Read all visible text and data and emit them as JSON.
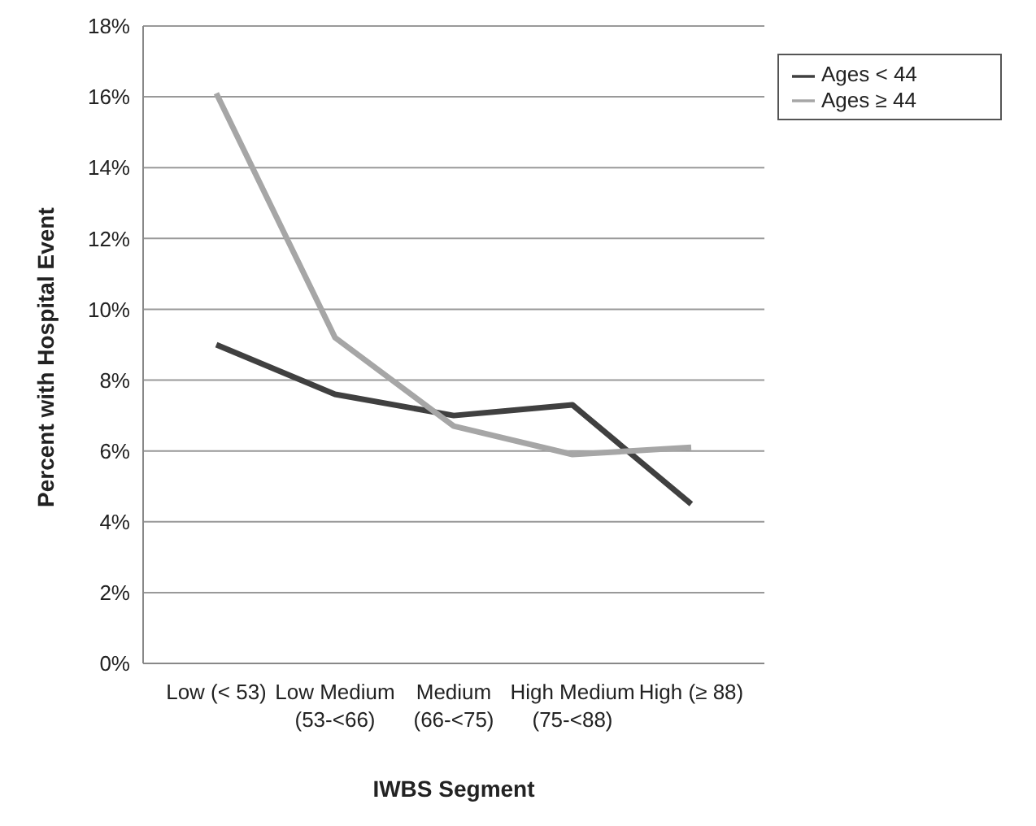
{
  "chart_data": {
    "type": "line",
    "xlabel": "IWBS Segment",
    "ylabel": "Percent with Hospital Event",
    "categories": [
      "Low (< 53)",
      "Low Medium\n(53-<66)",
      "Medium\n(66-<75)",
      "High Medium\n(75-<88)",
      "High (≥ 88)"
    ],
    "series": [
      {
        "name": "Ages < 44",
        "color": "#404040",
        "values": [
          9.0,
          7.6,
          7.0,
          7.3,
          4.5
        ]
      },
      {
        "name": "Ages ≥ 44",
        "color": "#a6a6a6",
        "values": [
          16.1,
          9.2,
          6.7,
          5.9,
          6.1
        ]
      }
    ],
    "ylim": [
      0,
      18
    ],
    "yticks": [
      {
        "value": 0,
        "label": "0%"
      },
      {
        "value": 2,
        "label": "2%"
      },
      {
        "value": 4,
        "label": "4%"
      },
      {
        "value": 6,
        "label": "6%"
      },
      {
        "value": 8,
        "label": "8%"
      },
      {
        "value": 10,
        "label": "10%"
      },
      {
        "value": 12,
        "label": "12%"
      },
      {
        "value": 14,
        "label": "14%"
      },
      {
        "value": 16,
        "label": "16%"
      },
      {
        "value": 18,
        "label": "18%"
      }
    ],
    "grid": "y",
    "legend": "top right",
    "marker": "none",
    "line_style": "solid"
  }
}
